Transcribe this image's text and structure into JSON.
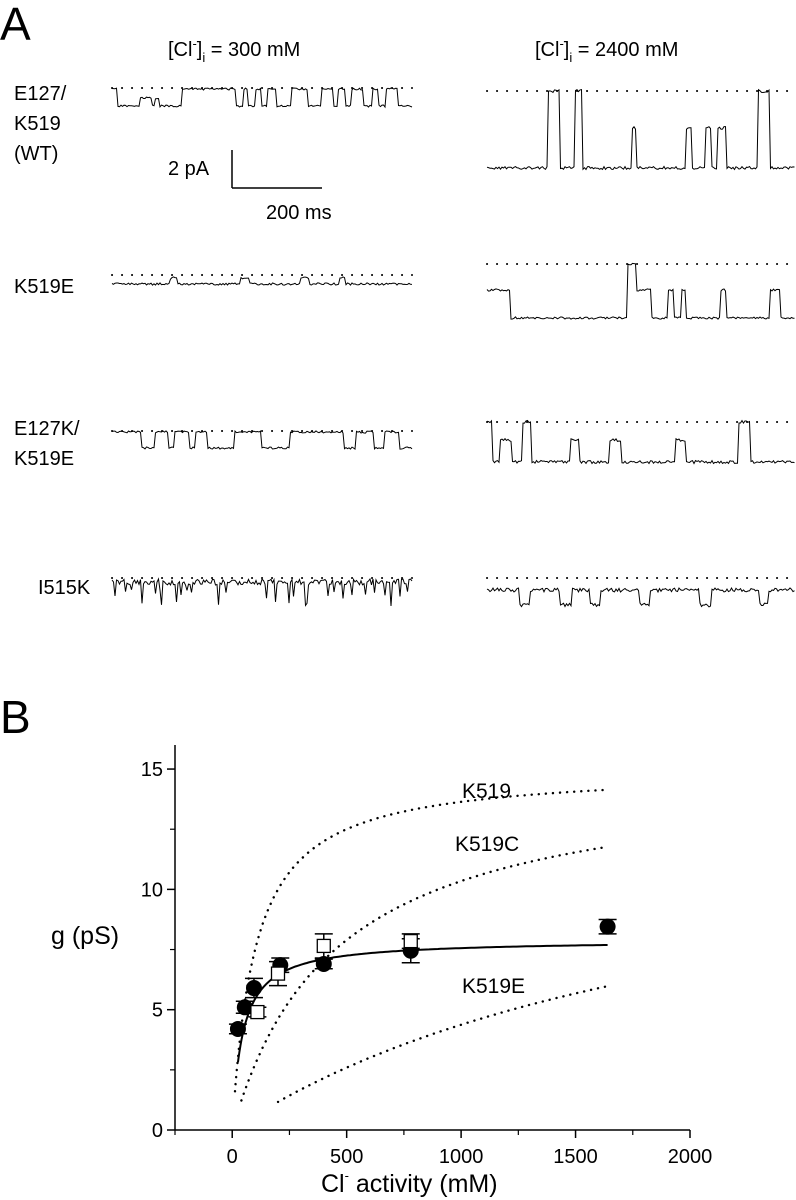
{
  "panel_a": {
    "letter": "A",
    "conditions": [
      {
        "prefix": "[Cl",
        "superscript": "-",
        "close": "]",
        "subscript": "i",
        "suffix": " = 300 mM"
      },
      {
        "prefix": "[Cl",
        "superscript": "-",
        "close": "]",
        "subscript": "i",
        "suffix": " = 2400 mM"
      }
    ],
    "rows": [
      {
        "label_lines": [
          "E127/",
          "K519",
          "(WT)"
        ]
      },
      {
        "label_lines": [
          "K519E"
        ]
      },
      {
        "label_lines": [
          "E127K/",
          "K519E"
        ]
      },
      {
        "label_lines": [
          "I515K"
        ]
      }
    ],
    "scale_bar": {
      "current": "2 pA",
      "time": "200 ms"
    }
  },
  "panel_b": {
    "letter": "B"
  },
  "chart_data": {
    "type": "scatter",
    "xlabel": {
      "prefix": "Cl",
      "superscript": "-",
      "suffix": " activity (mM)"
    },
    "ylabel": "g (pS)",
    "xlim": [
      -250,
      2000
    ],
    "ylim": [
      0,
      16
    ],
    "x_ticks": [
      0,
      500,
      1000,
      1500,
      2000
    ],
    "y_ticks": [
      0,
      5,
      10,
      15
    ],
    "x_tick_labels": [
      "0",
      "500",
      "1000",
      "1500",
      "2000"
    ],
    "y_tick_labels": [
      "0",
      "5",
      "10",
      "15"
    ],
    "series": [
      {
        "marker": "filled-circle",
        "points": [
          {
            "x": 25,
            "y": 4.2,
            "err": 0.2
          },
          {
            "x": 55,
            "y": 5.1,
            "err": 0.25
          },
          {
            "x": 95,
            "y": 5.9,
            "err": 0.4
          },
          {
            "x": 210,
            "y": 6.85,
            "err": 0.3
          },
          {
            "x": 400,
            "y": 6.9,
            "err": 0.2
          },
          {
            "x": 780,
            "y": 7.45,
            "err": 0.5
          },
          {
            "x": 1640,
            "y": 8.45,
            "err": 0.3
          }
        ]
      },
      {
        "marker": "open-square",
        "points": [
          {
            "x": 110,
            "y": 4.9,
            "err": 0.2
          },
          {
            "x": 200,
            "y": 6.5,
            "err": 0.5
          },
          {
            "x": 400,
            "y": 7.65,
            "err": 0.5
          },
          {
            "x": 780,
            "y": 7.85,
            "err": 0.3
          }
        ]
      }
    ],
    "fit": {
      "style": "solid",
      "gmax": 7.9,
      "kd": 45,
      "x_range": [
        25,
        1640
      ]
    },
    "model_curves": [
      {
        "label": "K519",
        "style": "dotted",
        "gmax": 15.0,
        "kd": 100,
        "x_range": [
          12,
          1640
        ]
      },
      {
        "label": "K519C",
        "style": "dotted",
        "gmax": 15.0,
        "kd": 450,
        "x_range": [
          40,
          1640
        ]
      },
      {
        "label": "K519E",
        "style": "dotted",
        "gmax": 14.0,
        "kd": 2200,
        "x_range": [
          200,
          1640
        ]
      }
    ],
    "grid": false
  }
}
